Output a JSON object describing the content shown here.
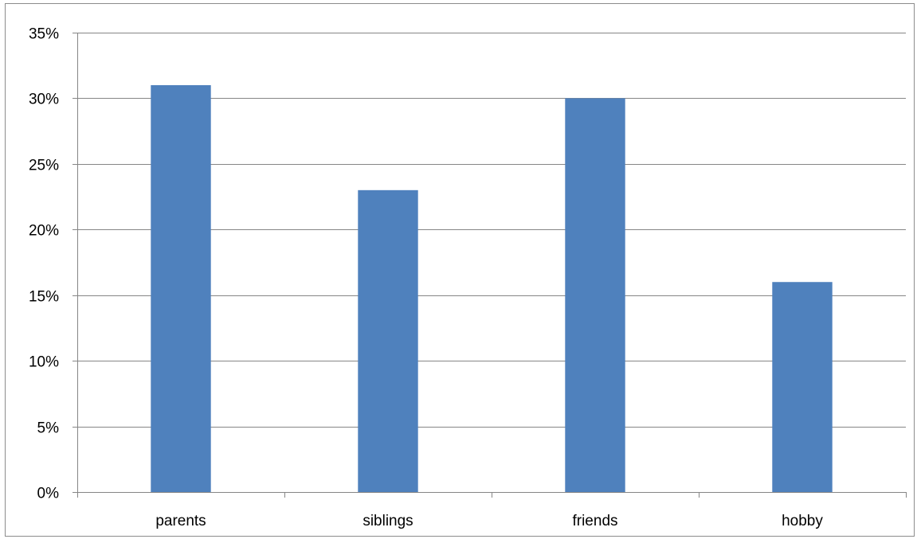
{
  "chart_data": {
    "type": "bar",
    "categories": [
      "parents",
      "siblings",
      "friends",
      "hobby"
    ],
    "values": [
      31,
      23,
      30,
      16
    ],
    "value_unit": "%",
    "ylim": [
      0,
      35
    ],
    "yticks": [
      0,
      5,
      10,
      15,
      20,
      25,
      30,
      35
    ],
    "ytick_labels": [
      "0%",
      "5%",
      "10%",
      "15%",
      "20%",
      "25%",
      "30%",
      "35%"
    ],
    "title": "",
    "xlabel": "",
    "ylabel": "",
    "grid": "horizontal",
    "legend": "none",
    "bar_color": "#4f81bd",
    "gridline_color": "#868686"
  }
}
